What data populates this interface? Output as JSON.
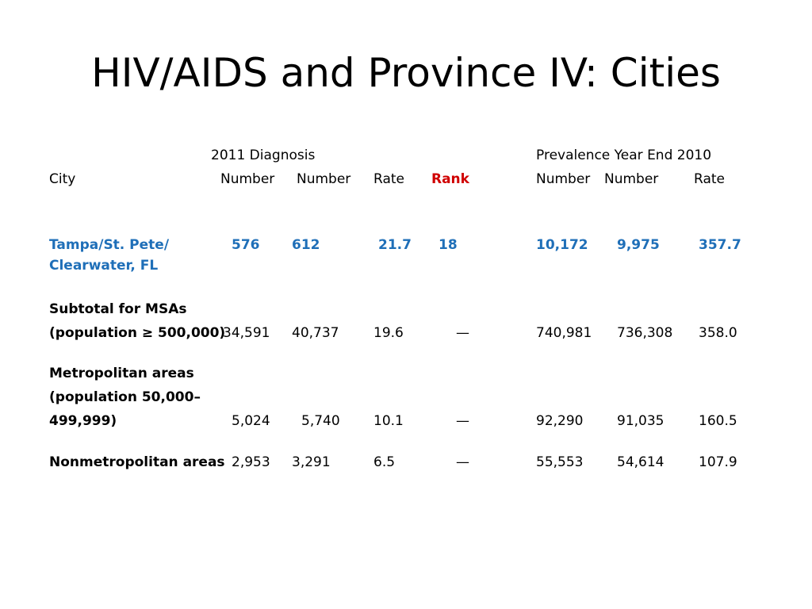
{
  "slide": {
    "title": "HIV/AIDS and Province IV: Cities"
  },
  "table": {
    "group_headers": {
      "diagnosis": "2011 Diagnosis",
      "prevalence": "Prevalence Year End 2010"
    },
    "columns": {
      "city": "City",
      "dx_num1": "Number",
      "dx_num2": "Number",
      "dx_rate": "Rate",
      "rank": "Rank",
      "pr_num1": "Number",
      "pr_num2": "Number",
      "pr_rate": "Rate"
    },
    "highlight_row": {
      "line1": "Tampa/St. Pete/",
      "line2": "Clearwater, FL",
      "n1": "576",
      "n2": "612",
      "rate": "21.7",
      "rank": "18",
      "p1": "10,172",
      "p2": "9,975",
      "prate": "357.7"
    },
    "msa_row": {
      "line1": "Subtotal for MSAs",
      "line2": "(population ≥ 500,000)",
      "n1": "34,591",
      "n2": "40,737",
      "rate": "19.6",
      "rank": "—",
      "p1": "740,981",
      "p2": "736,308",
      "prate": "358.0"
    },
    "metro_row": {
      "line1": "Metropolitan areas",
      "line2": "(population 50,000–",
      "line3": "499,999)",
      "n1": "5,024",
      "n2": "5,740",
      "rate": "10.1",
      "rank": "—",
      "p1": "92,290",
      "p2": "91,035",
      "prate": "160.5"
    },
    "nonmetro_row": {
      "line1": "Nonmetropolitan areas",
      "n1": "2,953",
      "n2": "3,291",
      "rate": "6.5",
      "rank": "—",
      "p1": "55,553",
      "p2": "54,614",
      "prate": "107.9"
    }
  }
}
